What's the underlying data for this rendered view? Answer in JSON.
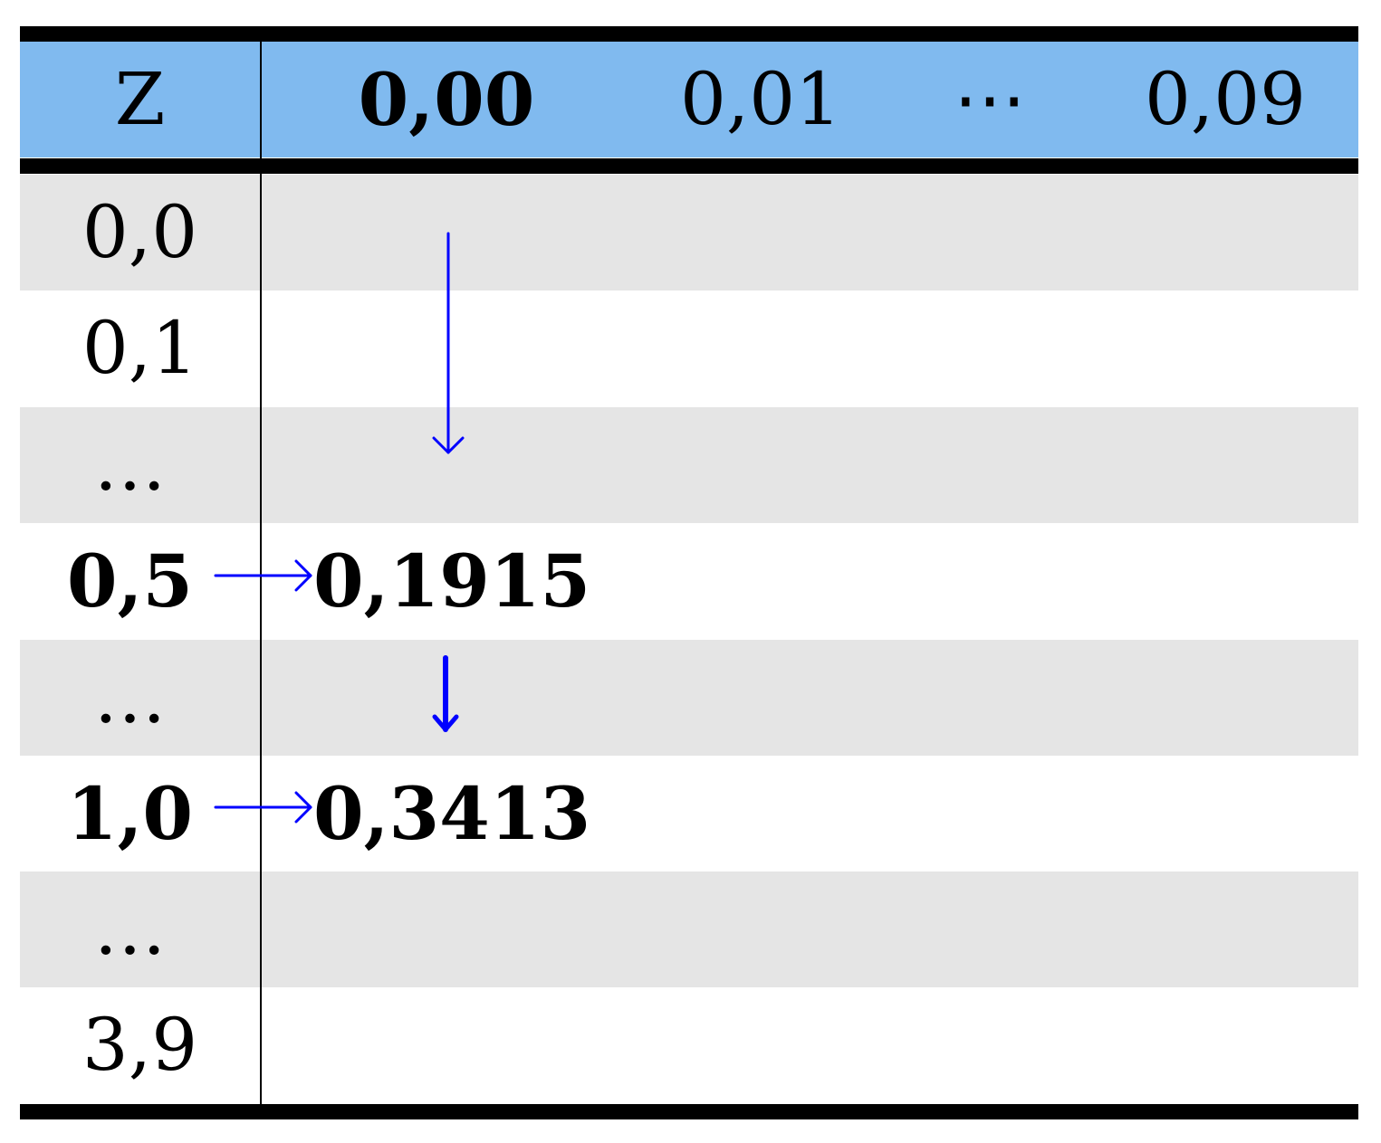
{
  "colors": {
    "header_bg": "#80BAEF",
    "stripe_bg": "#E5E5E5",
    "arrow": "#0000FF",
    "rule": "#000000"
  },
  "header": {
    "z_label": "Z",
    "columns": [
      "0,00",
      "0,01",
      "⋯",
      "0,09"
    ]
  },
  "rows": [
    {
      "z": "0,0",
      "value": ""
    },
    {
      "z": "0,1",
      "value": ""
    },
    {
      "z": "…",
      "value": ""
    },
    {
      "z": "0,5",
      "value": "0,1915"
    },
    {
      "z": "…",
      "value": ""
    },
    {
      "z": "1,0",
      "value": "0,3413"
    },
    {
      "z": "…",
      "value": ""
    },
    {
      "z": "3,9",
      "value": ""
    }
  ]
}
